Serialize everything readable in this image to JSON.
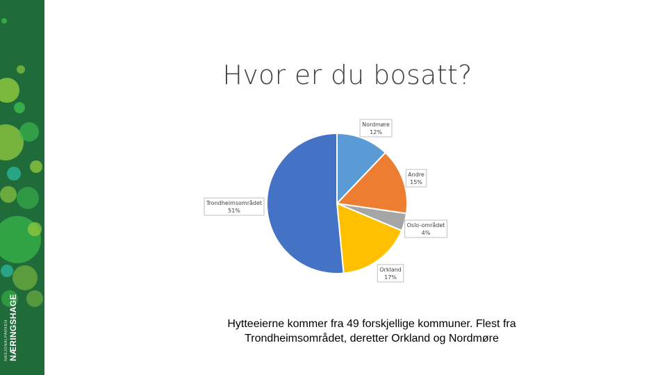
{
  "sidebar": {
    "logo_small": "NASJONALPARKEN",
    "logo_big": "NÆRINGSHAGE"
  },
  "colors": {
    "sidebar_bg": "#1f6b3a",
    "bubble_light": "#8cc63f",
    "bubble_mid": "#39b54a",
    "bubble_teal": "#2bb39a"
  },
  "chart_data": {
    "type": "pie",
    "title": "Hvor er du bosatt?",
    "slices": [
      {
        "label": "Nordmøre",
        "value": 12,
        "percent_label": "12%",
        "color": "#5b9bd5"
      },
      {
        "label": "Andre",
        "value": 15,
        "percent_label": "15%",
        "color": "#ed7d31"
      },
      {
        "label": "Oslo-området",
        "value": 4,
        "percent_label": "4%",
        "color": "#a5a5a5"
      },
      {
        "label": "Orkland",
        "value": 17,
        "percent_label": "17%",
        "color": "#ffc000"
      },
      {
        "label": "Trondheimsområdet",
        "value": 51,
        "percent_label": "51%",
        "color": "#4472c4"
      }
    ],
    "start_angle_deg": 0,
    "direction": "clockwise",
    "legend": "none"
  },
  "caption": {
    "line1": "Hytteeierne kommer fra 49 forskjellige kommuner. Flest fra",
    "line2": "Trondheimsområdet, deretter Orkland og Nordmøre"
  }
}
